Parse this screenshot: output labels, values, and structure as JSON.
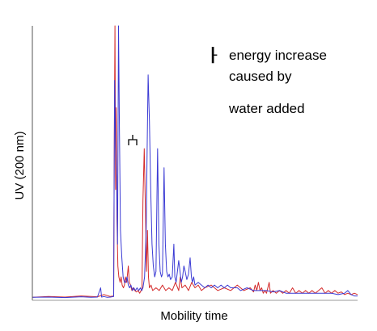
{
  "chart_data": {
    "type": "line",
    "title": "",
    "xlabel": "Mobility time",
    "ylabel": "UV (200 nm)",
    "xlim": [
      0,
      100
    ],
    "ylim": [
      0,
      100
    ],
    "grid": false,
    "annotations": {
      "legend_marker": "┠",
      "line1": "energy increase",
      "line2": "caused by",
      "line3": "water added"
    },
    "series": [
      {
        "name": "",
        "color": "#d42a2a",
        "points": [
          [
            0,
            0.5
          ],
          [
            5,
            0.8
          ],
          [
            10,
            0.6
          ],
          [
            15,
            1.0
          ],
          [
            20,
            0.7
          ],
          [
            22,
            1.5
          ],
          [
            24,
            0.8
          ],
          [
            25,
            1.0
          ],
          [
            25.2,
            60
          ],
          [
            25.4,
            100
          ],
          [
            25.6,
            40
          ],
          [
            25.8,
            70
          ],
          [
            26.0,
            30
          ],
          [
            26.3,
            12
          ],
          [
            26.6,
            8
          ],
          [
            27,
            6
          ],
          [
            27.3,
            8
          ],
          [
            27.6,
            5
          ],
          [
            28,
            4
          ],
          [
            28.3,
            5
          ],
          [
            28.6,
            8
          ],
          [
            29,
            6
          ],
          [
            29.5,
            12
          ],
          [
            29.8,
            6
          ],
          [
            30.2,
            5
          ],
          [
            30.6,
            3
          ],
          [
            31,
            4
          ],
          [
            31.5,
            3
          ],
          [
            32,
            2.5
          ],
          [
            32.5,
            3
          ],
          [
            33,
            2
          ],
          [
            33.4,
            3
          ],
          [
            33.7,
            3
          ],
          [
            34.0,
            36
          ],
          [
            34.4,
            55
          ],
          [
            34.8,
            30
          ],
          [
            35.1,
            10
          ],
          [
            35.4,
            25
          ],
          [
            35.7,
            8
          ],
          [
            36.0,
            4
          ],
          [
            36.5,
            5
          ],
          [
            37,
            3
          ],
          [
            38,
            4
          ],
          [
            39,
            3
          ],
          [
            40,
            5
          ],
          [
            41,
            3
          ],
          [
            42,
            4
          ],
          [
            43,
            3
          ],
          [
            44,
            6
          ],
          [
            45,
            3
          ],
          [
            45.5,
            8
          ],
          [
            46,
            4
          ],
          [
            47,
            5
          ],
          [
            48,
            3
          ],
          [
            49,
            6
          ],
          [
            50,
            4
          ],
          [
            51,
            5
          ],
          [
            52,
            3
          ],
          [
            53,
            4
          ],
          [
            55,
            5
          ],
          [
            57,
            3
          ],
          [
            59,
            4
          ],
          [
            61,
            3
          ],
          [
            63,
            5
          ],
          [
            65,
            3
          ],
          [
            67,
            4
          ],
          [
            68,
            2.5
          ],
          [
            68.5,
            5
          ],
          [
            69,
            3
          ],
          [
            69.5,
            6
          ],
          [
            70,
            3
          ],
          [
            70.5,
            4
          ],
          [
            71,
            2
          ],
          [
            71.5,
            3
          ],
          [
            72,
            2
          ],
          [
            72.8,
            6
          ],
          [
            73.2,
            2
          ],
          [
            74,
            3
          ],
          [
            75,
            2
          ],
          [
            76,
            3
          ],
          [
            77,
            2
          ],
          [
            78,
            3
          ],
          [
            79,
            2
          ],
          [
            80,
            4
          ],
          [
            81,
            2
          ],
          [
            82,
            3
          ],
          [
            83,
            2
          ],
          [
            84,
            3
          ],
          [
            85,
            2
          ],
          [
            86,
            3
          ],
          [
            87,
            2
          ],
          [
            88,
            3
          ],
          [
            89,
            4
          ],
          [
            90,
            2
          ],
          [
            91,
            3
          ],
          [
            92,
            2
          ],
          [
            93,
            3
          ],
          [
            94,
            2
          ],
          [
            95,
            2.5
          ],
          [
            96,
            1.5
          ],
          [
            97,
            2
          ],
          [
            98,
            1.5
          ],
          [
            99,
            2
          ],
          [
            100,
            1.5
          ]
        ]
      },
      {
        "name": "",
        "color": "#3a3ad4",
        "points": [
          [
            0,
            0.5
          ],
          [
            5,
            0.6
          ],
          [
            10,
            0.4
          ],
          [
            15,
            0.7
          ],
          [
            18,
            0.5
          ],
          [
            20,
            0.6
          ],
          [
            21,
            4
          ],
          [
            21.3,
            0.6
          ],
          [
            22,
            0.8
          ],
          [
            23,
            0.5
          ],
          [
            24,
            0.6
          ],
          [
            25,
            0.8
          ],
          [
            25.1,
            30
          ],
          [
            25.3,
            80
          ],
          [
            25.6,
            55
          ],
          [
            25.9,
            45
          ],
          [
            26.2,
            20
          ],
          [
            26.5,
            100
          ],
          [
            26.8,
            60
          ],
          [
            27.1,
            25
          ],
          [
            27.5,
            15
          ],
          [
            27.9,
            8
          ],
          [
            28.3,
            6
          ],
          [
            28.7,
            6
          ],
          [
            29.1,
            8
          ],
          [
            29.5,
            5
          ],
          [
            29.9,
            4
          ],
          [
            30.3,
            5
          ],
          [
            30.8,
            3
          ],
          [
            31.2,
            4
          ],
          [
            31.7,
            3
          ],
          [
            32.2,
            4
          ],
          [
            32.7,
            3
          ],
          [
            33.2,
            4
          ],
          [
            33.6,
            3
          ],
          [
            34.0,
            4
          ],
          [
            34.5,
            8
          ],
          [
            35.0,
            25
          ],
          [
            35.3,
            55
          ],
          [
            35.6,
            82
          ],
          [
            36.0,
            65
          ],
          [
            36.4,
            40
          ],
          [
            36.8,
            20
          ],
          [
            37.2,
            12
          ],
          [
            37.6,
            8
          ],
          [
            38,
            10
          ],
          [
            38.5,
            55
          ],
          [
            38.9,
            20
          ],
          [
            39.3,
            10
          ],
          [
            39.7,
            8
          ],
          [
            40,
            9
          ],
          [
            40.5,
            48
          ],
          [
            40.9,
            20
          ],
          [
            41.3,
            10
          ],
          [
            41.7,
            8
          ],
          [
            42.1,
            9
          ],
          [
            42.5,
            7
          ],
          [
            43,
            8
          ],
          [
            43.5,
            20
          ],
          [
            43.8,
            8
          ],
          [
            44.2,
            6
          ],
          [
            44.6,
            10
          ],
          [
            45,
            14
          ],
          [
            45.4,
            10
          ],
          [
            45.8,
            6
          ],
          [
            46.2,
            8
          ],
          [
            46.6,
            12
          ],
          [
            47,
            10
          ],
          [
            47.5,
            7
          ],
          [
            48,
            9
          ],
          [
            48.5,
            15
          ],
          [
            48.9,
            8
          ],
          [
            49.2,
            6
          ],
          [
            49.6,
            8
          ],
          [
            50,
            5
          ],
          [
            51,
            6
          ],
          [
            52,
            5
          ],
          [
            53,
            4
          ],
          [
            54,
            5
          ],
          [
            55,
            4
          ],
          [
            56,
            5
          ],
          [
            57,
            4
          ],
          [
            58,
            5
          ],
          [
            59,
            4
          ],
          [
            60,
            5
          ],
          [
            61,
            4
          ],
          [
            62,
            4
          ],
          [
            63,
            4
          ],
          [
            64,
            3
          ],
          [
            66,
            4
          ],
          [
            68,
            3
          ],
          [
            70,
            3
          ],
          [
            72,
            3
          ],
          [
            74,
            2.5
          ],
          [
            76,
            3
          ],
          [
            78,
            2
          ],
          [
            80,
            2
          ],
          [
            82,
            2
          ],
          [
            84,
            2
          ],
          [
            86,
            2
          ],
          [
            88,
            2
          ],
          [
            90,
            2
          ],
          [
            92,
            2
          ],
          [
            94,
            1.5
          ],
          [
            96,
            2
          ],
          [
            97,
            3
          ],
          [
            98,
            1.5
          ],
          [
            99,
            1
          ],
          [
            100,
            1
          ]
        ]
      }
    ]
  }
}
